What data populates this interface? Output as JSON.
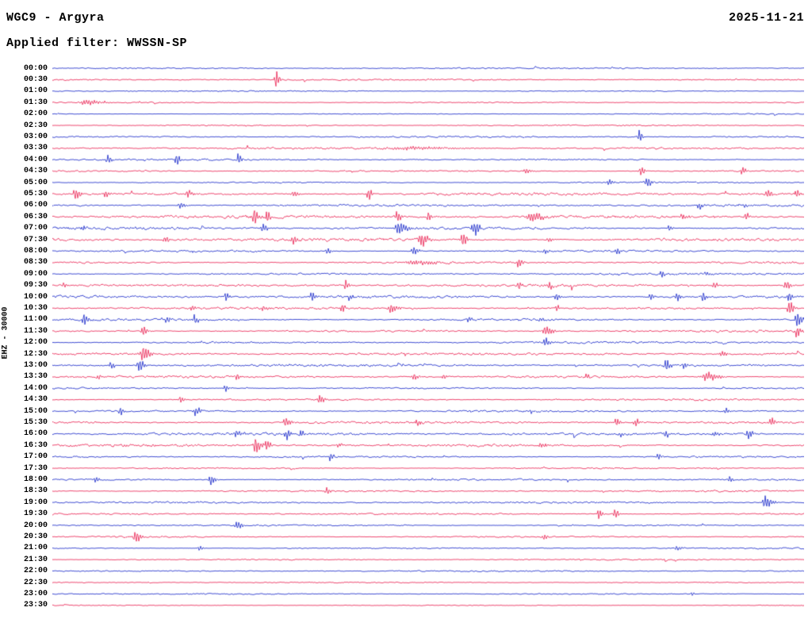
{
  "header": {
    "station": "WGC9 - Argyra",
    "date": "2025-11-21",
    "filter_line": "Applied filter: WWSSN-SP"
  },
  "chart_data": {
    "type": "line",
    "subtype": "helicorder-seismogram",
    "title": "WGC9 - Argyra",
    "date": "2025-11-21",
    "filter": "WWSSN-SP",
    "channel_label": "EHZ - 30000",
    "minutes_per_row": 30,
    "x_axis": "one row per 30 minutes, 00:00 to 23:30, trace amplitude = ground motion",
    "legend": "off",
    "grid": "off",
    "colors": {
      "even_row_trace": "#0f1fc7",
      "odd_row_trace": "#e8184a",
      "text": "#000000",
      "background": "#ffffff"
    },
    "rows": [
      {
        "label": "00:00",
        "color": "blue",
        "amp": 0.6,
        "events": []
      },
      {
        "label": "00:30",
        "color": "red",
        "amp": 0.7,
        "events": [
          [
            0.297,
            11,
            3
          ]
        ]
      },
      {
        "label": "01:00",
        "color": "blue",
        "amp": 0.6,
        "events": []
      },
      {
        "label": "01:30",
        "color": "red",
        "amp": 0.7,
        "events": [
          [
            0.045,
            3,
            14
          ]
        ]
      },
      {
        "label": "02:00",
        "color": "blue",
        "amp": 0.5,
        "events": []
      },
      {
        "label": "02:30",
        "color": "red",
        "amp": 0.6,
        "events": []
      },
      {
        "label": "03:00",
        "color": "blue",
        "amp": 0.7,
        "events": [
          [
            0.78,
            7,
            3
          ]
        ]
      },
      {
        "label": "03:30",
        "color": "red",
        "amp": 0.9,
        "events": [
          [
            0.47,
            1.8,
            40
          ]
        ]
      },
      {
        "label": "04:00",
        "color": "blue",
        "amp": 0.8,
        "events": [
          [
            0.073,
            5,
            3
          ],
          [
            0.165,
            8,
            3
          ],
          [
            0.247,
            6,
            3
          ]
        ]
      },
      {
        "label": "04:30",
        "color": "red",
        "amp": 0.9,
        "events": [
          [
            0.63,
            3,
            5
          ],
          [
            0.782,
            6,
            3
          ],
          [
            0.917,
            5,
            3
          ]
        ]
      },
      {
        "label": "05:00",
        "color": "blue",
        "amp": 0.8,
        "events": [
          [
            0.74,
            4,
            4
          ],
          [
            0.79,
            6,
            4
          ]
        ]
      },
      {
        "label": "05:30",
        "color": "red",
        "amp": 1.4,
        "events": [
          [
            0.03,
            6,
            5
          ],
          [
            0.07,
            4,
            4
          ],
          [
            0.18,
            5,
            4
          ],
          [
            0.32,
            4,
            4
          ],
          [
            0.42,
            7,
            3
          ],
          [
            0.95,
            5,
            4
          ],
          [
            0.99,
            6,
            3
          ]
        ]
      },
      {
        "label": "06:00",
        "color": "blue",
        "amp": 1.0,
        "events": [
          [
            0.17,
            4,
            4
          ],
          [
            0.86,
            4,
            3
          ],
          [
            0.92,
            3,
            3
          ]
        ]
      },
      {
        "label": "06:30",
        "color": "red",
        "amp": 1.4,
        "events": [
          [
            0.268,
            8,
            5
          ],
          [
            0.285,
            7,
            3
          ],
          [
            0.458,
            5,
            4
          ],
          [
            0.5,
            5,
            3
          ],
          [
            0.637,
            5,
            10
          ],
          [
            0.838,
            4,
            4
          ],
          [
            0.922,
            5,
            3
          ]
        ]
      },
      {
        "label": "07:00",
        "color": "blue",
        "amp": 1.3,
        "events": [
          [
            0.04,
            3,
            3
          ],
          [
            0.28,
            5,
            4
          ],
          [
            0.46,
            7,
            8
          ],
          [
            0.56,
            8,
            5
          ],
          [
            0.82,
            3,
            3
          ]
        ]
      },
      {
        "label": "07:30",
        "color": "red",
        "amp": 1.8,
        "events": [
          [
            0.15,
            4,
            4
          ],
          [
            0.32,
            4,
            4
          ],
          [
            0.49,
            9,
            6
          ],
          [
            0.545,
            8,
            4
          ],
          [
            0.66,
            3,
            4
          ]
        ]
      },
      {
        "label": "08:00",
        "color": "blue",
        "amp": 1.2,
        "events": [
          [
            0.365,
            4,
            3
          ],
          [
            0.48,
            5,
            4
          ],
          [
            0.655,
            5,
            3
          ],
          [
            0.75,
            4,
            3
          ]
        ]
      },
      {
        "label": "08:30",
        "color": "red",
        "amp": 1.1,
        "events": [
          [
            0.48,
            2.5,
            20
          ],
          [
            0.62,
            5,
            4
          ]
        ]
      },
      {
        "label": "09:00",
        "color": "blue",
        "amp": 0.9,
        "events": [
          [
            0.81,
            5,
            3
          ],
          [
            0.87,
            3,
            3
          ]
        ]
      },
      {
        "label": "09:30",
        "color": "red",
        "amp": 1.2,
        "events": [
          [
            0.015,
            3,
            3
          ],
          [
            0.39,
            6,
            3
          ],
          [
            0.62,
            4,
            3
          ],
          [
            0.66,
            5,
            3
          ],
          [
            0.88,
            4,
            3
          ],
          [
            0.975,
            6,
            4
          ]
        ]
      },
      {
        "label": "10:00",
        "color": "blue",
        "amp": 1.3,
        "events": [
          [
            0.23,
            5,
            3
          ],
          [
            0.345,
            6,
            3
          ],
          [
            0.395,
            4,
            3
          ],
          [
            0.67,
            5,
            3
          ],
          [
            0.795,
            5,
            3
          ],
          [
            0.83,
            6,
            3
          ],
          [
            0.865,
            5,
            3
          ],
          [
            0.98,
            7,
            3
          ]
        ]
      },
      {
        "label": "10:30",
        "color": "red",
        "amp": 1.2,
        "events": [
          [
            0.185,
            4,
            3
          ],
          [
            0.28,
            3,
            3
          ],
          [
            0.385,
            5,
            3
          ],
          [
            0.45,
            6,
            6
          ],
          [
            0.67,
            4,
            3
          ],
          [
            0.98,
            8,
            4
          ]
        ]
      },
      {
        "label": "11:00",
        "color": "blue",
        "amp": 1.2,
        "events": [
          [
            0.041,
            7,
            4
          ],
          [
            0.152,
            5,
            3
          ],
          [
            0.189,
            6,
            3
          ],
          [
            0.553,
            4,
            3
          ],
          [
            0.648,
            4,
            3
          ],
          [
            0.99,
            9,
            4
          ]
        ]
      },
      {
        "label": "11:30",
        "color": "red",
        "amp": 1.1,
        "events": [
          [
            0.12,
            6,
            4
          ],
          [
            0.655,
            6,
            6
          ],
          [
            0.99,
            7,
            4
          ]
        ]
      },
      {
        "label": "12:00",
        "color": "blue",
        "amp": 1.0,
        "events": [
          [
            0.655,
            6,
            4
          ]
        ]
      },
      {
        "label": "12:30",
        "color": "red",
        "amp": 1.1,
        "events": [
          [
            0.12,
            9,
            6
          ],
          [
            0.89,
            4,
            4
          ]
        ]
      },
      {
        "label": "13:00",
        "color": "blue",
        "amp": 1.1,
        "events": [
          [
            0.078,
            5,
            3
          ],
          [
            0.115,
            8,
            4
          ],
          [
            0.816,
            6,
            4
          ],
          [
            0.84,
            4,
            3
          ]
        ]
      },
      {
        "label": "13:30",
        "color": "red",
        "amp": 1.2,
        "events": [
          [
            0.06,
            3,
            3
          ],
          [
            0.245,
            4,
            3
          ],
          [
            0.48,
            4,
            4
          ],
          [
            0.52,
            3,
            3
          ],
          [
            0.71,
            3,
            3
          ],
          [
            0.87,
            5,
            10
          ]
        ]
      },
      {
        "label": "14:00",
        "color": "blue",
        "amp": 0.9,
        "events": [
          [
            0.23,
            4,
            3
          ]
        ]
      },
      {
        "label": "14:30",
        "color": "red",
        "amp": 1.0,
        "events": [
          [
            0.17,
            5,
            3
          ],
          [
            0.355,
            5,
            4
          ]
        ]
      },
      {
        "label": "15:00",
        "color": "blue",
        "amp": 1.0,
        "events": [
          [
            0.09,
            5,
            3
          ],
          [
            0.19,
            6,
            4
          ],
          [
            0.635,
            3,
            3
          ],
          [
            0.895,
            4,
            3
          ]
        ]
      },
      {
        "label": "15:30",
        "color": "red",
        "amp": 1.1,
        "events": [
          [
            0.31,
            6,
            4
          ],
          [
            0.485,
            4,
            3
          ],
          [
            0.75,
            5,
            3
          ],
          [
            0.775,
            5,
            3
          ],
          [
            0.955,
            5,
            4
          ]
        ]
      },
      {
        "label": "16:00",
        "color": "blue",
        "amp": 1.2,
        "events": [
          [
            0.245,
            5,
            4
          ],
          [
            0.31,
            6,
            4
          ],
          [
            0.33,
            5,
            3
          ],
          [
            0.755,
            4,
            3
          ],
          [
            0.815,
            5,
            3
          ],
          [
            0.88,
            4,
            3
          ],
          [
            0.925,
            5,
            4
          ]
        ]
      },
      {
        "label": "16:30",
        "color": "red",
        "amp": 1.3,
        "events": [
          [
            0.27,
            8,
            5
          ],
          [
            0.285,
            7,
            3
          ],
          [
            0.38,
            3,
            3
          ],
          [
            0.65,
            4,
            4
          ]
        ]
      },
      {
        "label": "17:00",
        "color": "blue",
        "amp": 1.0,
        "events": [
          [
            0.37,
            5,
            3
          ],
          [
            0.805,
            4,
            3
          ]
        ]
      },
      {
        "label": "17:30",
        "color": "red",
        "amp": 0.8,
        "events": []
      },
      {
        "label": "18:00",
        "color": "blue",
        "amp": 0.9,
        "events": [
          [
            0.057,
            4,
            3
          ],
          [
            0.21,
            6,
            4
          ],
          [
            0.9,
            4,
            3
          ]
        ]
      },
      {
        "label": "18:30",
        "color": "red",
        "amp": 0.8,
        "events": [
          [
            0.365,
            5,
            3
          ]
        ]
      },
      {
        "label": "19:00",
        "color": "blue",
        "amp": 0.9,
        "events": [
          [
            0.948,
            8,
            6
          ]
        ]
      },
      {
        "label": "19:30",
        "color": "red",
        "amp": 0.8,
        "events": [
          [
            0.727,
            7,
            3
          ],
          [
            0.748,
            6,
            3
          ]
        ]
      },
      {
        "label": "20:00",
        "color": "blue",
        "amp": 0.8,
        "events": [
          [
            0.245,
            5,
            4
          ]
        ]
      },
      {
        "label": "20:30",
        "color": "red",
        "amp": 0.8,
        "events": [
          [
            0.11,
            8,
            4
          ],
          [
            0.653,
            4,
            3
          ]
        ]
      },
      {
        "label": "21:00",
        "color": "blue",
        "amp": 0.7,
        "events": [
          [
            0.195,
            3,
            3
          ],
          [
            0.83,
            3,
            5
          ]
        ]
      },
      {
        "label": "21:30",
        "color": "red",
        "amp": 0.6,
        "events": []
      },
      {
        "label": "22:00",
        "color": "blue",
        "amp": 0.6,
        "events": []
      },
      {
        "label": "22:30",
        "color": "red",
        "amp": 0.5,
        "events": []
      },
      {
        "label": "23:00",
        "color": "blue",
        "amp": 0.6,
        "events": [
          [
            0.85,
            3,
            2
          ]
        ]
      },
      {
        "label": "23:30",
        "color": "red",
        "amp": 0.5,
        "events": []
      }
    ]
  }
}
